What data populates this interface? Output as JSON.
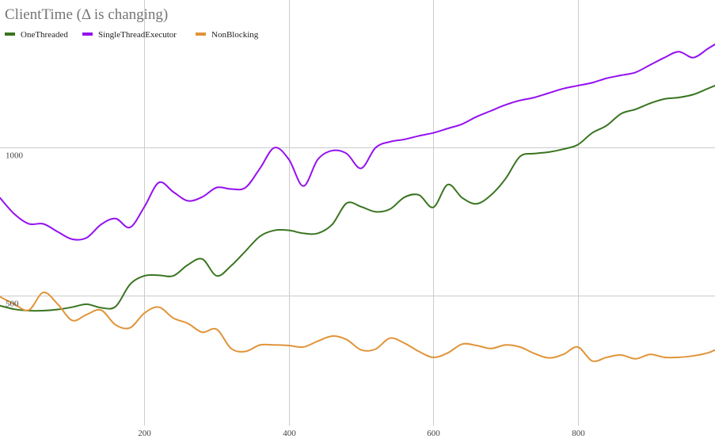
{
  "chart_data": {
    "type": "line",
    "title": "ClientTime (Δ is changing)",
    "xlabel": "",
    "ylabel": "",
    "xlim": [
      0,
      990
    ],
    "ylim": [
      0,
      1500
    ],
    "x_ticks": [
      200,
      400,
      600,
      800
    ],
    "y_ticks": [
      500,
      1000
    ],
    "grid": true,
    "legend_position": "top-left",
    "colors": [
      "#3a7521",
      "#9411f0",
      "#e09439"
    ],
    "series": [
      {
        "name": "OneThreaded",
        "x": [
          0,
          20,
          40,
          60,
          80,
          100,
          120,
          140,
          160,
          180,
          200,
          220,
          240,
          260,
          280,
          300,
          320,
          340,
          360,
          380,
          400,
          420,
          440,
          460,
          480,
          500,
          520,
          540,
          560,
          580,
          600,
          620,
          640,
          660,
          680,
          700,
          720,
          740,
          760,
          780,
          800,
          820,
          840,
          860,
          880,
          900,
          920,
          940,
          960,
          980,
          990
        ],
        "y": [
          465,
          453,
          448,
          448,
          452,
          460,
          470,
          458,
          462,
          537,
          566,
          568,
          566,
          603,
          623,
          566,
          600,
          650,
          700,
          720,
          720,
          710,
          710,
          740,
          812,
          800,
          783,
          792,
          832,
          840,
          798,
          875,
          830,
          810,
          840,
          895,
          970,
          980,
          985,
          995,
          1010,
          1050,
          1075,
          1115,
          1130,
          1150,
          1165,
          1170,
          1180,
          1200,
          1210
        ]
      },
      {
        "name": "SingleThreadExecutor",
        "x": [
          0,
          20,
          40,
          60,
          80,
          100,
          120,
          140,
          160,
          180,
          200,
          220,
          240,
          260,
          280,
          300,
          320,
          340,
          360,
          380,
          400,
          420,
          440,
          460,
          480,
          500,
          520,
          540,
          560,
          580,
          600,
          620,
          640,
          660,
          680,
          700,
          720,
          740,
          760,
          780,
          800,
          820,
          840,
          860,
          880,
          900,
          920,
          940,
          960,
          980,
          990
        ],
        "y": [
          830,
          775,
          742,
          742,
          715,
          690,
          695,
          740,
          760,
          730,
          800,
          882,
          850,
          820,
          833,
          865,
          860,
          865,
          930,
          1000,
          960,
          870,
          960,
          990,
          980,
          930,
          1000,
          1020,
          1028,
          1040,
          1050,
          1065,
          1080,
          1105,
          1125,
          1145,
          1160,
          1170,
          1185,
          1200,
          1210,
          1220,
          1235,
          1245,
          1255,
          1280,
          1305,
          1325,
          1305,
          1335,
          1350
        ]
      },
      {
        "name": "NonBlocking",
        "x": [
          0,
          20,
          40,
          60,
          80,
          100,
          120,
          140,
          160,
          180,
          200,
          220,
          240,
          260,
          280,
          300,
          320,
          340,
          360,
          380,
          400,
          420,
          440,
          460,
          480,
          500,
          520,
          540,
          560,
          580,
          600,
          620,
          640,
          660,
          680,
          700,
          720,
          740,
          760,
          780,
          800,
          820,
          840,
          860,
          880,
          900,
          920,
          940,
          960,
          980,
          990
        ],
        "y": [
          495,
          470,
          450,
          510,
          470,
          415,
          435,
          450,
          400,
          390,
          440,
          460,
          423,
          405,
          375,
          385,
          320,
          310,
          332,
          332,
          330,
          325,
          345,
          362,
          350,
          315,
          318,
          355,
          338,
          310,
          290,
          305,
          335,
          330,
          320,
          332,
          325,
          303,
          288,
          300,
          325,
          278,
          290,
          298,
          285,
          300,
          290,
          290,
          295,
          305,
          315
        ]
      }
    ]
  }
}
